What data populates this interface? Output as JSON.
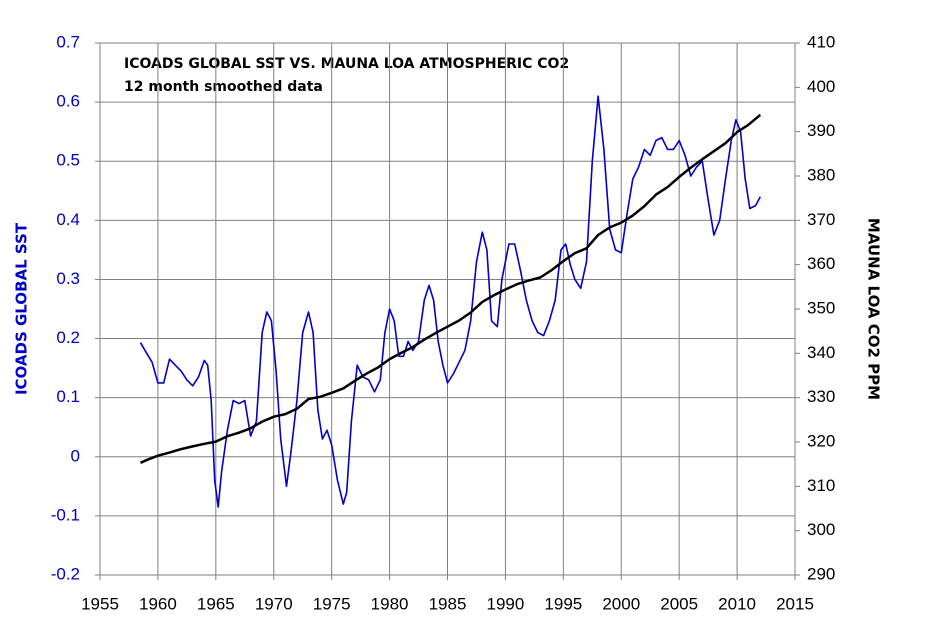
{
  "chart_data": {
    "type": "line",
    "title": "ICOADS GLOBAL SST VS. MAUNA LOA ATMOSPHERIC CO2",
    "subtitle": "12 month smoothed data",
    "ylabel": "ICOADS GLOBAL SST",
    "y2label": "MAUNA LOA CO2 PPM",
    "xlim": [
      1955,
      2015
    ],
    "xticks": [
      1955,
      1960,
      1965,
      1970,
      1975,
      1980,
      1985,
      1990,
      1995,
      2000,
      2005,
      2010,
      2015
    ],
    "ylim": [
      -0.2,
      0.7
    ],
    "yticks": [
      0.7,
      0.6,
      0.5,
      0.4,
      0.3,
      0.2,
      0.1,
      0,
      -0.1,
      -0.2
    ],
    "y2lim": [
      290,
      410
    ],
    "y2ticks": [
      410,
      400,
      390,
      380,
      370,
      360,
      350,
      340,
      330,
      320,
      310,
      300,
      290
    ],
    "grid": true,
    "series": [
      {
        "color": "#0000cc",
        "axis": "y",
        "x": [
          1958.5,
          1959,
          1959.5,
          1960,
          1960.5,
          1961,
          1961.5,
          1962,
          1962.5,
          1963,
          1963.5,
          1964,
          1964.3,
          1964.6,
          1964.9,
          1965.2,
          1965.5,
          1966,
          1966.5,
          1967,
          1967.5,
          1968,
          1968.5,
          1969,
          1969.4,
          1969.8,
          1970.2,
          1970.6,
          1971.1,
          1971.5,
          1972,
          1972.5,
          1973,
          1973.4,
          1973.8,
          1974.2,
          1974.6,
          1975,
          1975.5,
          1976,
          1976.3,
          1976.7,
          1977.2,
          1977.7,
          1978.2,
          1978.7,
          1979.2,
          1979.6,
          1980,
          1980.4,
          1980.8,
          1981.2,
          1981.6,
          1982,
          1982.5,
          1983,
          1983.4,
          1983.8,
          1984.2,
          1984.6,
          1985,
          1985.5,
          1986,
          1986.5,
          1987,
          1987.5,
          1988,
          1988.4,
          1988.8,
          1989.3,
          1989.7,
          1990.3,
          1990.8,
          1991.3,
          1991.8,
          1992.3,
          1992.8,
          1993.3,
          1993.8,
          1994.3,
          1994.8,
          1995.2,
          1995.6,
          1996,
          1996.5,
          1997,
          1997.5,
          1998,
          1998.5,
          1999,
          1999.5,
          2000,
          2000.5,
          2001,
          2001.5,
          2002,
          2002.5,
          2003,
          2003.5,
          2004,
          2004.5,
          2005,
          2005.5,
          2006,
          2006.5,
          2007,
          2007.5,
          2008,
          2008.5,
          2009,
          2009.5,
          2009.9,
          2010.3,
          2010.7,
          2011.1,
          2011.6,
          2012
        ],
        "values": [
          0.193,
          0.176,
          0.16,
          0.125,
          0.125,
          0.165,
          0.155,
          0.145,
          0.13,
          0.12,
          0.135,
          0.163,
          0.155,
          0.095,
          -0.04,
          -0.085,
          -0.025,
          0.045,
          0.095,
          0.09,
          0.095,
          0.035,
          0.06,
          0.21,
          0.245,
          0.23,
          0.145,
          0.03,
          -0.05,
          0.01,
          0.095,
          0.21,
          0.245,
          0.21,
          0.08,
          0.03,
          0.045,
          0.02,
          -0.04,
          -0.08,
          -0.06,
          0.06,
          0.155,
          0.135,
          0.13,
          0.11,
          0.13,
          0.21,
          0.25,
          0.23,
          0.17,
          0.17,
          0.195,
          0.18,
          0.195,
          0.265,
          0.29,
          0.265,
          0.195,
          0.155,
          0.125,
          0.14,
          0.16,
          0.18,
          0.23,
          0.33,
          0.38,
          0.35,
          0.23,
          0.22,
          0.3,
          0.36,
          0.36,
          0.315,
          0.265,
          0.23,
          0.21,
          0.205,
          0.23,
          0.265,
          0.35,
          0.36,
          0.325,
          0.3,
          0.285,
          0.33,
          0.5,
          0.61,
          0.52,
          0.385,
          0.35,
          0.345,
          0.41,
          0.47,
          0.49,
          0.52,
          0.51,
          0.535,
          0.54,
          0.52,
          0.52,
          0.535,
          0.51,
          0.475,
          0.49,
          0.5,
          0.435,
          0.375,
          0.4,
          0.47,
          0.535,
          0.57,
          0.55,
          0.47,
          0.42,
          0.425,
          0.44
        ]
      },
      {
        "color": "#000000",
        "axis": "y2",
        "x": [
          1958.5,
          1959,
          1960,
          1961,
          1962,
          1963,
          1964,
          1965,
          1966,
          1967,
          1968,
          1969,
          1970,
          1971,
          1972,
          1973,
          1974,
          1975,
          1976,
          1977,
          1978,
          1979,
          1980,
          1981,
          1982,
          1983,
          1984,
          1985,
          1986,
          1987,
          1988,
          1989,
          1990,
          1991,
          1992,
          1993,
          1994,
          1995,
          1996,
          1997,
          1998,
          1999,
          2000,
          2001,
          2002,
          2003,
          2004,
          2005,
          2006,
          2007,
          2008,
          2009,
          2010,
          2011,
          2012
        ],
        "values": [
          315.3,
          315.9,
          316.9,
          317.6,
          318.4,
          319,
          319.6,
          320.1,
          321.3,
          322.1,
          323.1,
          324.6,
          325.7,
          326.3,
          327.5,
          329.7,
          330.2,
          331.1,
          332.1,
          333.8,
          335.4,
          336.8,
          338.7,
          340.1,
          341.4,
          343.1,
          344.6,
          346,
          347.4,
          349.2,
          351.6,
          353.1,
          354.4,
          355.6,
          356.4,
          357.1,
          358.8,
          360.8,
          362.6,
          363.7,
          366.7,
          368.4,
          369.5,
          371.1,
          373.2,
          375.8,
          377.5,
          379.8,
          381.9,
          383.8,
          385.6,
          387.4,
          389.9,
          391.6,
          393.8
        ]
      }
    ]
  }
}
